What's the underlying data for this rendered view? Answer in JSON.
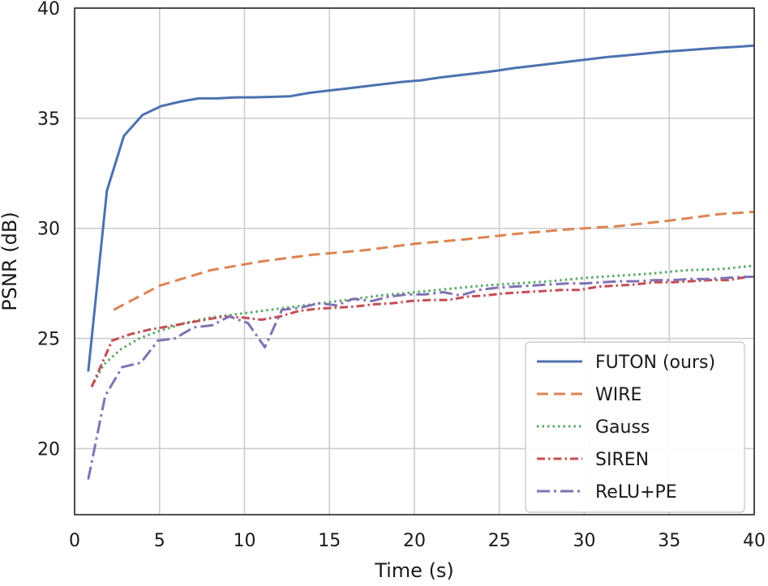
{
  "chart_data": {
    "type": "line",
    "title": "",
    "xlabel": "Time (s)",
    "ylabel": "PSNR (dB)",
    "xlim": [
      0,
      40
    ],
    "ylim": [
      17,
      40
    ],
    "xticks": [
      0,
      5,
      10,
      15,
      20,
      25,
      30,
      35,
      40
    ],
    "yticks": [
      20,
      25,
      30,
      35,
      40
    ],
    "xtick_labels": [
      "0",
      "5",
      "10",
      "15",
      "20",
      "25",
      "30",
      "35",
      "40"
    ],
    "ytick_labels": [
      "20",
      "25",
      "30",
      "35",
      "40"
    ],
    "grid": true,
    "legend_position": "lower-right",
    "series": [
      {
        "name": "FUTON (ours)",
        "color": "#4c72b0",
        "dash": "solid",
        "x": [
          0.8,
          1.9,
          2.9,
          4.0,
          5.1,
          6.2,
          7.3,
          8.4,
          9.5,
          10.5,
          11.6,
          12.7,
          13.8,
          14.9,
          16.0,
          17.1,
          18.2,
          19.3,
          20.4,
          21.5,
          22.6,
          23.7,
          24.8,
          25.9,
          27.0,
          28.1,
          29.2,
          30.3,
          31.4,
          32.5,
          33.6,
          34.7,
          35.8,
          36.9,
          38.0,
          39.1,
          40.0
        ],
        "y": [
          23.5,
          31.7,
          34.2,
          35.15,
          35.55,
          35.75,
          35.9,
          35.9,
          35.95,
          35.95,
          35.97,
          36.0,
          36.15,
          36.25,
          36.35,
          36.45,
          36.55,
          36.65,
          36.72,
          36.85,
          36.95,
          37.05,
          37.15,
          37.28,
          37.38,
          37.48,
          37.58,
          37.68,
          37.78,
          37.86,
          37.94,
          38.02,
          38.08,
          38.14,
          38.2,
          38.25,
          38.3
        ]
      },
      {
        "name": "WIRE",
        "color": "#dd8452",
        "dash": "long-dash",
        "x": [
          2.3,
          5.0,
          8.0,
          11.0,
          14.0,
          17.0,
          20.0,
          23.0,
          26.0,
          29.0,
          32.0,
          35.0,
          38.0,
          40.0
        ],
        "y": [
          26.3,
          27.4,
          28.1,
          28.5,
          28.8,
          29.0,
          29.3,
          29.5,
          29.75,
          29.95,
          30.1,
          30.35,
          30.65,
          30.75
        ]
      },
      {
        "name": "Gauss",
        "color": "#55a868",
        "dash": "dotted",
        "x": [
          1.0,
          1.7,
          2.7,
          3.8,
          5.0,
          6.5,
          8.0,
          10.0,
          12.0,
          14.0,
          16.0,
          18.0,
          20.0,
          22.0,
          24.0,
          26.0,
          28.0,
          30.0,
          32.0,
          34.0,
          36.0,
          38.0,
          40.0
        ],
        "y": [
          22.8,
          23.8,
          24.5,
          25.0,
          25.35,
          25.7,
          25.95,
          26.15,
          26.35,
          26.55,
          26.75,
          26.95,
          27.1,
          27.25,
          27.4,
          27.5,
          27.6,
          27.75,
          27.85,
          27.95,
          28.1,
          28.15,
          28.3
        ]
      },
      {
        "name": "SIREN",
        "color": "#c44e52",
        "dash": "dash-dot",
        "x": [
          1.0,
          2.2,
          3.3,
          4.4,
          5.5,
          6.6,
          7.7,
          8.8,
          9.9,
          11.0,
          12.1,
          13.2,
          14.3,
          15.4,
          16.5,
          17.6,
          18.7,
          19.8,
          20.9,
          22.0,
          23.1,
          24.2,
          25.3,
          26.4,
          27.5,
          28.6,
          29.7,
          30.8,
          31.9,
          33.0,
          34.1,
          35.2,
          36.3,
          37.4,
          38.5,
          39.6,
          40.0
        ],
        "y": [
          22.8,
          24.9,
          25.2,
          25.4,
          25.55,
          25.7,
          25.85,
          26.0,
          25.95,
          25.85,
          26.0,
          26.25,
          26.35,
          26.4,
          26.45,
          26.55,
          26.6,
          26.7,
          26.75,
          26.75,
          26.9,
          26.95,
          27.05,
          27.1,
          27.15,
          27.2,
          27.2,
          27.35,
          27.4,
          27.45,
          27.55,
          27.55,
          27.6,
          27.65,
          27.65,
          27.8,
          27.8
        ]
      },
      {
        "name": "ReLU+PE",
        "color": "#8172b3",
        "dash": "long-dash-dot",
        "x": [
          0.8,
          1.8,
          2.8,
          3.9,
          4.9,
          5.9,
          7.0,
          8.1,
          9.1,
          10.2,
          11.2,
          12.2,
          13.3,
          14.4,
          15.4,
          16.4,
          17.5,
          18.5,
          19.6,
          20.6,
          21.7,
          22.7,
          23.8,
          24.8,
          25.8,
          26.9,
          27.9,
          29.0,
          30.0,
          31.0,
          32.1,
          33.1,
          34.2,
          35.2,
          36.3,
          37.3,
          38.4,
          39.4,
          40.0
        ],
        "y": [
          18.6,
          22.4,
          23.7,
          23.9,
          24.9,
          25.0,
          25.5,
          25.6,
          26.0,
          25.7,
          24.6,
          26.3,
          26.4,
          26.6,
          26.5,
          26.8,
          26.7,
          26.9,
          27.0,
          27.0,
          27.1,
          26.95,
          27.2,
          27.3,
          27.35,
          27.4,
          27.45,
          27.5,
          27.5,
          27.55,
          27.6,
          27.6,
          27.65,
          27.65,
          27.7,
          27.7,
          27.75,
          27.8,
          27.8
        ]
      }
    ]
  }
}
